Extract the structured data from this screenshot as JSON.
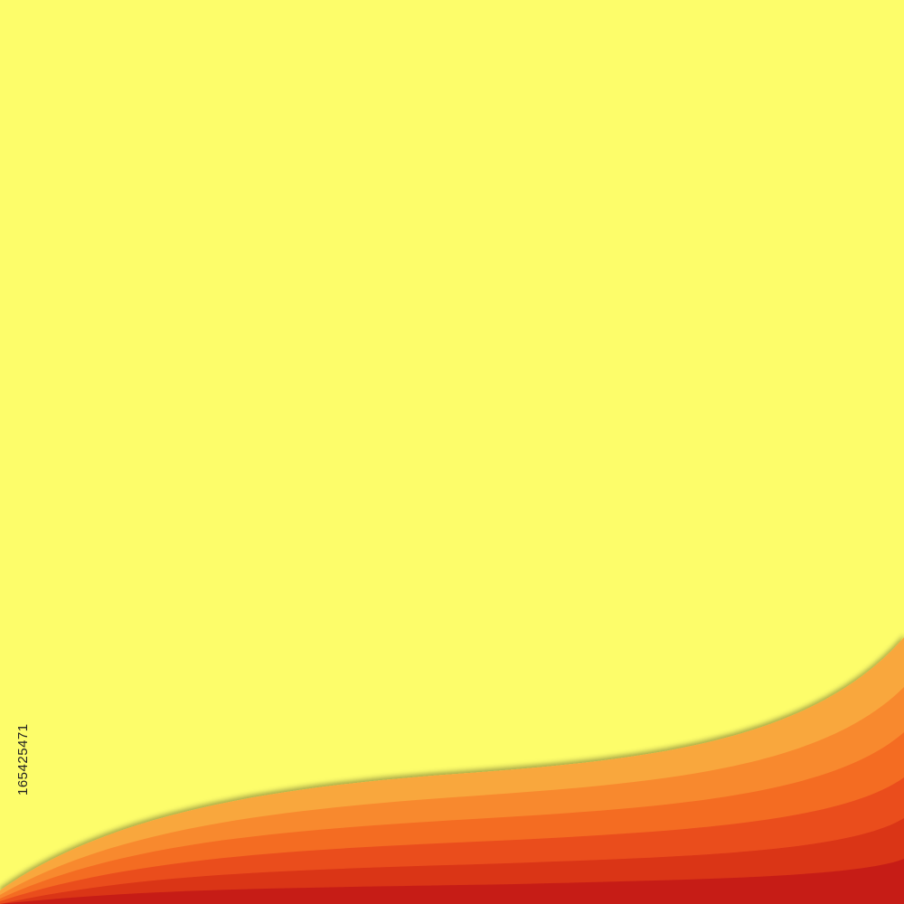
{
  "watermark": {
    "id": "165425471"
  }
}
